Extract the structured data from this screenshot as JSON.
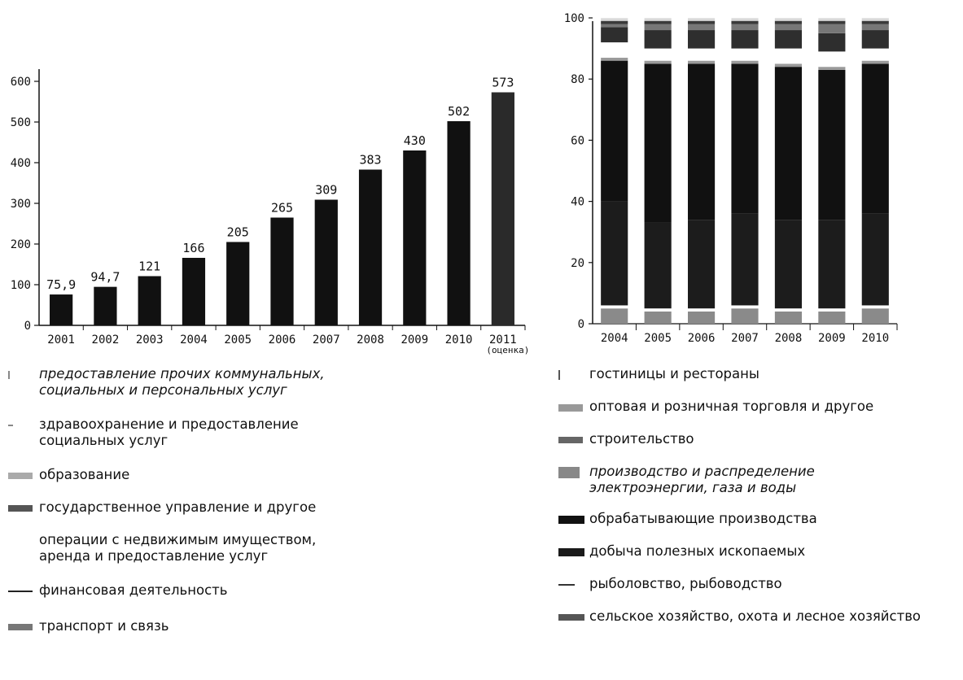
{
  "chart_data": [
    {
      "type": "bar",
      "categories": [
        "2001",
        "2002",
        "2003",
        "2004",
        "2005",
        "2006",
        "2007",
        "2008",
        "2009",
        "2010",
        "2011"
      ],
      "category_notes": [
        "",
        "",
        "",
        "",
        "",
        "",
        "",
        "",
        "",
        "",
        "(оценка)"
      ],
      "values": [
        75.9,
        94.7,
        121,
        166,
        205,
        265,
        309,
        383,
        430,
        502,
        573
      ],
      "value_labels": [
        "75,9",
        "94,7",
        "121",
        "166",
        "205",
        "265",
        "309",
        "383",
        "430",
        "502",
        "573"
      ],
      "yticks": [
        0,
        100,
        200,
        300,
        400,
        500,
        600
      ],
      "ylim": [
        0,
        640
      ],
      "grid": false,
      "colors": [
        "#111111",
        "#111111",
        "#111111",
        "#111111",
        "#111111",
        "#111111",
        "#111111",
        "#111111",
        "#111111",
        "#111111",
        "#2a2a2a"
      ]
    },
    {
      "type": "bar",
      "stacked": true,
      "categories": [
        "2004",
        "2005",
        "2006",
        "2007",
        "2008",
        "2009",
        "2010"
      ],
      "yticks": [
        0,
        20,
        40,
        60,
        80,
        100
      ],
      "ylim": [
        0,
        100
      ],
      "grid": false,
      "legend_position": "bottom",
      "series": [
        {
          "name": "сельское хозяйство, охота и лесное хозяйство",
          "color": "#8a8a8a",
          "values": [
            5,
            4,
            4,
            5,
            4,
            4,
            5
          ]
        },
        {
          "name": "рыболовство, рыбоводство",
          "color": "#ffffff",
          "values": [
            1,
            1,
            1,
            1,
            1,
            1,
            1
          ]
        },
        {
          "name": "добыча полезных ископаемых",
          "color": "#1c1c1c",
          "values": [
            34,
            28,
            29,
            30,
            29,
            29,
            30
          ]
        },
        {
          "name": "обрабатывающие производства",
          "color": "#111111",
          "values": [
            46,
            52,
            51,
            49,
            50,
            49,
            49
          ]
        },
        {
          "name": "производство и распределение\nэлектроэнергии, газа и воды",
          "color": "#9a9a9a",
          "values": [
            1,
            1,
            1,
            1,
            1,
            1,
            1
          ]
        },
        {
          "name": "строительство",
          "color": "#ffffff",
          "values": [
            5,
            4,
            4,
            4,
            5,
            5,
            4
          ]
        },
        {
          "name": "оптовая и розничная торговля и другое",
          "color": "#2e2e2e",
          "values": [
            5,
            6,
            6,
            6,
            6,
            6,
            6
          ]
        },
        {
          "name": "гостиницы и рестораны",
          "color": "#777777",
          "values": [
            1,
            2,
            2,
            2,
            2,
            3,
            2
          ]
        },
        {
          "name": "транспорт и связь",
          "color": "#3a3a3a",
          "values": [
            1,
            1,
            1,
            1,
            1,
            1,
            1
          ]
        },
        {
          "name": "финансовая деятельность",
          "color": "#cfcfcf",
          "values": [
            0.5,
            0.5,
            0.5,
            0.5,
            0.5,
            0.5,
            0.5
          ]
        },
        {
          "name": "операции с недвижимым имуществом,\nаренда и предоставление услуг",
          "color": "#e0e0e0",
          "values": [
            0.5,
            0.5,
            0.5,
            0.5,
            0.5,
            0.5,
            0.5
          ]
        }
      ]
    }
  ],
  "legend_left": [
    {
      "label": "предоставление прочих коммунальных,\nсоциальных и персональных услуг",
      "swatch": "#888888",
      "swatch_w": 2,
      "swatch_h": 10,
      "italic": true
    },
    {
      "label": "здравоохранение и предоставление\nсоциальных услуг",
      "swatch": "#888888",
      "swatch_w": 6,
      "swatch_h": 2,
      "italic": false
    },
    {
      "label": "образование",
      "swatch": "#aaaaaa",
      "swatch_w": 30,
      "swatch_h": 8,
      "italic": false
    },
    {
      "label": "государственное управление и другое",
      "swatch": "#555555",
      "swatch_w": 30,
      "swatch_h": 8,
      "italic": false
    },
    {
      "label": "операции с недвижимым имуществом,\nаренда и предоставление услуг",
      "swatch": "#ffffff",
      "swatch_w": 30,
      "swatch_h": 8,
      "italic": false
    },
    {
      "label": "финансовая деятельность",
      "swatch": "#222222",
      "swatch_w": 30,
      "swatch_h": 2,
      "italic": false
    },
    {
      "label": "транспорт и связь",
      "swatch": "#777777",
      "swatch_w": 30,
      "swatch_h": 8,
      "italic": false
    }
  ],
  "legend_right": [
    {
      "label": "гостиницы и рестораны",
      "swatch": "#555555",
      "swatch_w": 2,
      "swatch_h": 12,
      "italic": false
    },
    {
      "label": "оптовая и розничная торговля и другое",
      "swatch": "#999999",
      "swatch_w": 30,
      "swatch_h": 9,
      "italic": false
    },
    {
      "label": "строительство",
      "swatch": "#666666",
      "swatch_w": 30,
      "swatch_h": 8,
      "italic": false
    },
    {
      "label": "производство и распределение\nэлектроэнергии, газа и воды",
      "swatch": "#888888",
      "swatch_w": 26,
      "swatch_h": 14,
      "italic": true
    },
    {
      "label": "обрабатывающие производства",
      "swatch": "#111111",
      "swatch_w": 32,
      "swatch_h": 10,
      "italic": false
    },
    {
      "label": "добыча полезных ископаемых",
      "swatch": "#1a1a1a",
      "swatch_w": 32,
      "swatch_h": 10,
      "italic": false
    },
    {
      "label": "рыболовство, рыбоводство",
      "swatch": "#333333",
      "swatch_w": 20,
      "swatch_h": 2,
      "italic": false
    },
    {
      "label": "сельское хозяйство, охота и лесное хозяйство",
      "swatch": "#555555",
      "swatch_w": 32,
      "swatch_h": 8,
      "italic": false
    }
  ]
}
